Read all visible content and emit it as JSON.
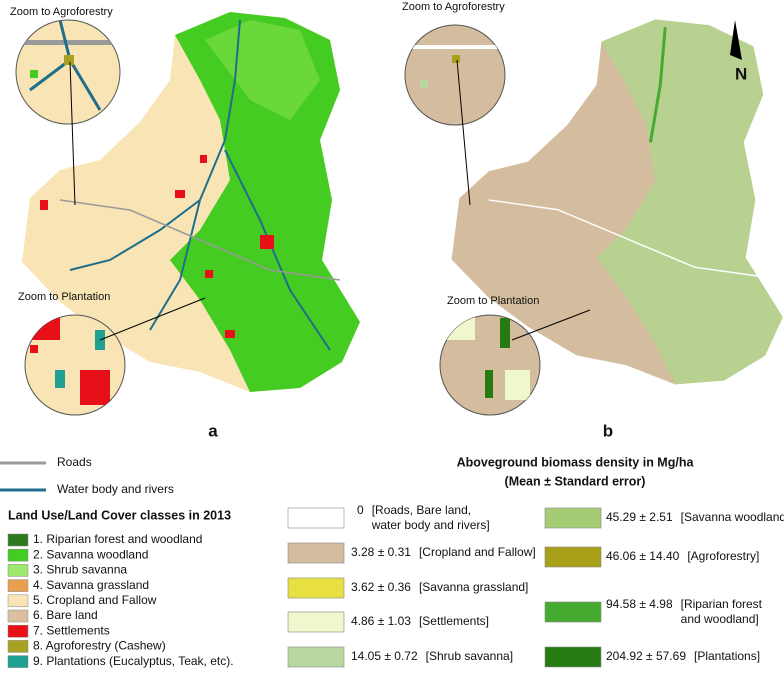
{
  "panel_a": {
    "zoom_agroforestry": "Zoom to Agroforestry",
    "zoom_plantation": "Zoom to Plantation",
    "label": "a"
  },
  "panel_b": {
    "zoom_agroforestry": "Zoom to Agroforestry",
    "zoom_plantation": "Zoom to Plantation",
    "label": "b",
    "north": "N"
  },
  "line_legend": [
    {
      "label": "Roads",
      "color": "#9a9a9a"
    },
    {
      "label": "Water body and rivers",
      "color": "#1f6e8a"
    }
  ],
  "lulc_legend": {
    "title": "Land Use/Land Cover classes in 2013",
    "items": [
      {
        "label": "1. Riparian forest and woodland",
        "color": "#2d7a1c"
      },
      {
        "label": "2. Savanna woodland",
        "color": "#44cc22"
      },
      {
        "label": "3. Shrub savanna",
        "color": "#9ee86c"
      },
      {
        "label": "4. Savanna grassland",
        "color": "#e8a050"
      },
      {
        "label": "5. Cropland and Fallow",
        "color": "#f8e4b4"
      },
      {
        "label": "6. Bare land",
        "color": "#d8c0a0"
      },
      {
        "label": "7. Settlements",
        "color": "#e81018"
      },
      {
        "label": "8. Agroforestry (Cashew)",
        "color": "#a8a020"
      },
      {
        "label": "9. Plantations (Eucalyptus, Teak, etc).",
        "color": "#20a090"
      }
    ]
  },
  "biomass_legend": {
    "title": [
      "Aboveground biomass density in Mg/ha",
      "(Mean ± Standard error)"
    ],
    "items": [
      {
        "value": "0",
        "label": [
          "[Roads, Bare land,",
          "water body and rivers]"
        ],
        "color": "#ffffff"
      },
      {
        "value": "3.28 ± 0.31",
        "label": [
          "[Cropland and Fallow]"
        ],
        "color": "#d4bc9e"
      },
      {
        "value": "3.62 ± 0.36",
        "label": [
          "[Savanna grassland]"
        ],
        "color": "#e8e040"
      },
      {
        "value": "4.86 ± 1.03",
        "label": [
          "[Settlements]"
        ],
        "color": "#eef8cc"
      },
      {
        "value": "14.05 ± 0.72",
        "label": [
          "[Shrub savanna]"
        ],
        "color": "#b8d8a0"
      },
      {
        "value": "45.29 ± 2.51",
        "label": [
          "[Savanna woodland]"
        ],
        "color": "#a4cc74"
      },
      {
        "value": "46.06 ± 14.40",
        "label": [
          "[Agroforestry]"
        ],
        "color": "#a8a018"
      },
      {
        "value": "94.58 ± 4.98",
        "label": [
          "[Riparian forest",
          "and woodland]"
        ],
        "color": "#44aa30"
      },
      {
        "value": "204.92 ± 57.69",
        "label": [
          "[Plantations]"
        ],
        "color": "#267a12"
      }
    ]
  }
}
